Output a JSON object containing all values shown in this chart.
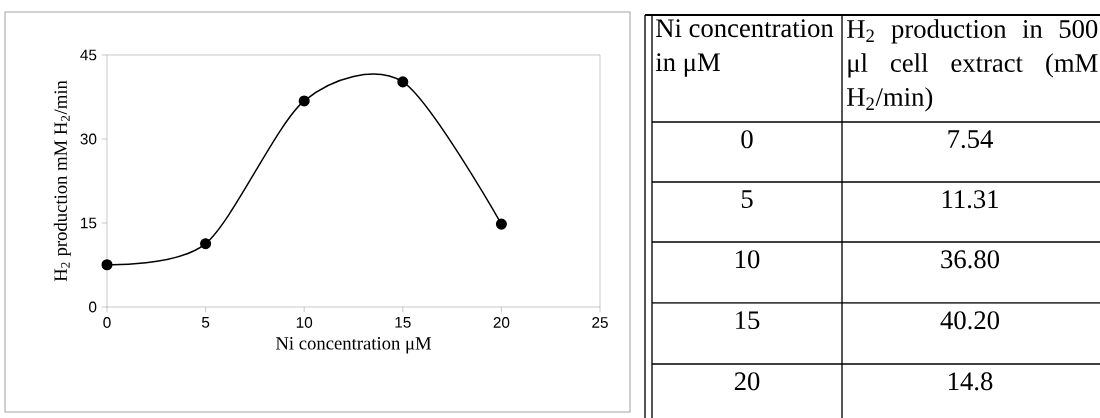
{
  "chart_data": {
    "type": "line",
    "xlabel": "Ni concentration μM",
    "ylabel": "H$_{2}$ production mM H$_{2}$/min",
    "x": [
      0,
      5,
      10,
      15,
      20
    ],
    "values": [
      7.54,
      11.31,
      36.8,
      40.2,
      14.8
    ],
    "color": "#000000",
    "marker": "circle",
    "xlim": [
      0,
      25
    ],
    "ylim": [
      0,
      45
    ],
    "xticks": [
      0,
      5,
      10,
      15,
      20,
      25
    ],
    "yticks": [
      0,
      15,
      30,
      45
    ],
    "annotations": [
      "Ni concentration in μM",
      "H$_{2}$ production in 500 μl cell extract (mM H$_{2}$/min)",
      "0",
      "7.54",
      "5",
      "11.31",
      "10",
      "36.80",
      "15",
      "40.20",
      "20",
      "14.8"
    ]
  }
}
